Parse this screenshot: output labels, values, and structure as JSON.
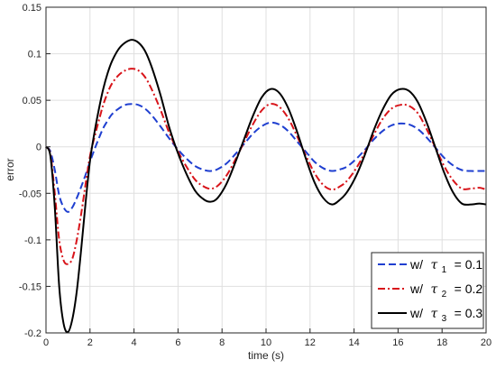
{
  "chart_data": {
    "type": "line",
    "title": "",
    "xlabel": "time (s)",
    "ylabel": "error",
    "xlim": [
      0,
      20
    ],
    "ylim": [
      -0.2,
      0.15
    ],
    "xticks": [
      0,
      2,
      4,
      6,
      8,
      10,
      12,
      14,
      16,
      18,
      20
    ],
    "yticks": [
      -0.2,
      -0.15,
      -0.1,
      -0.05,
      0,
      0.05,
      0.1,
      0.15
    ],
    "xtick_labels": [
      "0",
      "2",
      "4",
      "6",
      "8",
      "10",
      "12",
      "14",
      "16",
      "18",
      "20"
    ],
    "ytick_labels": [
      "-0.2",
      "-0.15",
      "-0.1",
      "-0.05",
      "0",
      "0.05",
      "0.1",
      "0.15"
    ],
    "grid": true,
    "legend_position": "bottom-right",
    "series": [
      {
        "legend_prefix": "w/",
        "symbol": "τ",
        "subscript": "1",
        "legend_suffix": "= 0.1",
        "color": "#1f3fd0",
        "style": "dashed",
        "x": [
          0,
          0.2,
          0.4,
          0.6,
          0.8,
          1.0,
          1.2,
          1.4,
          1.6,
          1.8,
          2.0,
          2.2,
          2.4,
          2.6,
          2.8,
          3.0,
          3.3,
          3.6,
          3.9,
          4.2,
          4.5,
          4.8,
          5.2,
          5.6,
          6.0,
          6.4,
          6.8,
          7.2,
          7.5,
          7.8,
          8.2,
          8.6,
          9.0,
          9.4,
          9.8,
          10.2,
          10.6,
          11.0,
          11.4,
          11.8,
          12.2,
          12.6,
          13.0,
          13.4,
          13.7,
          14.1,
          14.5,
          14.9,
          15.3,
          15.7,
          16.1,
          16.5,
          16.9,
          17.3,
          17.7,
          18.1,
          18.5,
          18.9,
          19.3,
          19.7,
          20.0
        ],
        "y": [
          0,
          -0.005,
          -0.025,
          -0.052,
          -0.065,
          -0.07,
          -0.065,
          -0.055,
          -0.043,
          -0.03,
          -0.016,
          -0.003,
          0.009,
          0.02,
          0.028,
          0.035,
          0.041,
          0.045,
          0.046,
          0.045,
          0.041,
          0.034,
          0.022,
          0.009,
          -0.003,
          -0.013,
          -0.021,
          -0.025,
          -0.026,
          -0.024,
          -0.018,
          -0.008,
          0.003,
          0.014,
          0.022,
          0.026,
          0.024,
          0.017,
          0.006,
          -0.005,
          -0.016,
          -0.023,
          -0.026,
          -0.024,
          -0.021,
          -0.013,
          -0.003,
          0.008,
          0.017,
          0.023,
          0.025,
          0.024,
          0.019,
          0.01,
          -0.001,
          -0.012,
          -0.02,
          -0.025,
          -0.026,
          -0.026,
          -0.026
        ]
      },
      {
        "legend_prefix": "w/",
        "symbol": "τ",
        "subscript": "2",
        "legend_suffix": "= 0.2",
        "color": "#d8141a",
        "style": "dash-dot",
        "x": [
          0,
          0.2,
          0.4,
          0.6,
          0.8,
          1.0,
          1.2,
          1.4,
          1.6,
          1.8,
          2.0,
          2.2,
          2.4,
          2.6,
          2.8,
          3.0,
          3.3,
          3.6,
          3.9,
          4.2,
          4.5,
          4.8,
          5.2,
          5.6,
          6.0,
          6.4,
          6.8,
          7.2,
          7.5,
          7.8,
          8.2,
          8.6,
          9.0,
          9.4,
          9.8,
          10.2,
          10.6,
          11.0,
          11.4,
          11.8,
          12.2,
          12.6,
          13.0,
          13.4,
          13.7,
          14.1,
          14.5,
          14.9,
          15.3,
          15.7,
          16.1,
          16.5,
          16.9,
          17.3,
          17.7,
          18.1,
          18.5,
          18.9,
          19.3,
          19.7,
          20.0
        ],
        "y": [
          0,
          -0.008,
          -0.05,
          -0.1,
          -0.122,
          -0.126,
          -0.12,
          -0.1,
          -0.072,
          -0.04,
          -0.01,
          0.01,
          0.028,
          0.045,
          0.058,
          0.068,
          0.077,
          0.082,
          0.084,
          0.082,
          0.075,
          0.062,
          0.04,
          0.015,
          -0.005,
          -0.022,
          -0.036,
          -0.043,
          -0.045,
          -0.042,
          -0.031,
          -0.014,
          0.005,
          0.024,
          0.039,
          0.046,
          0.043,
          0.031,
          0.012,
          -0.009,
          -0.028,
          -0.041,
          -0.046,
          -0.042,
          -0.036,
          -0.023,
          -0.006,
          0.013,
          0.03,
          0.041,
          0.045,
          0.044,
          0.036,
          0.019,
          -0.001,
          -0.021,
          -0.036,
          -0.045,
          -0.045,
          -0.044,
          -0.046
        ]
      },
      {
        "legend_prefix": "w/",
        "symbol": "τ",
        "subscript": "3",
        "legend_suffix": "= 0.3",
        "color": "#000000",
        "style": "solid",
        "x": [
          0,
          0.2,
          0.4,
          0.6,
          0.8,
          1.0,
          1.2,
          1.4,
          1.6,
          1.8,
          2.0,
          2.2,
          2.4,
          2.6,
          2.8,
          3.0,
          3.3,
          3.6,
          3.9,
          4.2,
          4.5,
          4.8,
          5.2,
          5.6,
          6.0,
          6.4,
          6.8,
          7.2,
          7.5,
          7.8,
          8.2,
          8.6,
          9.0,
          9.4,
          9.8,
          10.2,
          10.6,
          11.0,
          11.4,
          11.8,
          12.2,
          12.6,
          13.0,
          13.4,
          13.7,
          14.1,
          14.5,
          14.9,
          15.3,
          15.7,
          16.1,
          16.5,
          16.9,
          17.3,
          17.7,
          18.1,
          18.5,
          18.9,
          19.3,
          19.7,
          20.0
        ],
        "y": [
          0,
          -0.01,
          -0.065,
          -0.15,
          -0.19,
          -0.199,
          -0.185,
          -0.155,
          -0.11,
          -0.06,
          -0.015,
          0.015,
          0.04,
          0.062,
          0.079,
          0.092,
          0.105,
          0.112,
          0.115,
          0.112,
          0.103,
          0.086,
          0.056,
          0.021,
          -0.007,
          -0.03,
          -0.048,
          -0.057,
          -0.059,
          -0.055,
          -0.04,
          -0.017,
          0.008,
          0.033,
          0.053,
          0.062,
          0.058,
          0.042,
          0.017,
          -0.012,
          -0.038,
          -0.055,
          -0.062,
          -0.056,
          -0.048,
          -0.031,
          -0.008,
          0.018,
          0.04,
          0.056,
          0.062,
          0.06,
          0.048,
          0.026,
          -0.001,
          -0.028,
          -0.049,
          -0.061,
          -0.062,
          -0.061,
          -0.062
        ]
      }
    ]
  }
}
